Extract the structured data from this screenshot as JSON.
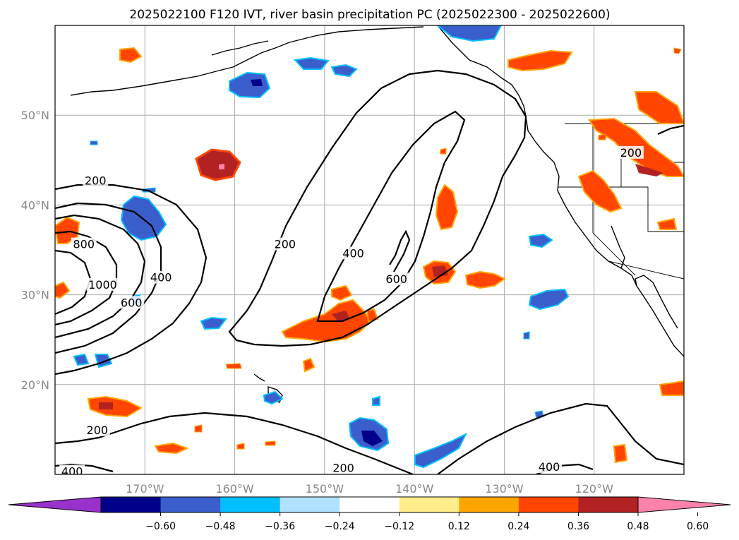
{
  "chart_data": {
    "type": "contour-map",
    "title": "2025022100 F120 IVT, river basin precipitation PC (2025022300 - 2025022600)",
    "map": {
      "lon_range": [
        -180,
        -110
      ],
      "lat_range": [
        10,
        60
      ],
      "lat_ticks": [
        {
          "value": 20,
          "label": "20°N"
        },
        {
          "value": 30,
          "label": "30°N"
        },
        {
          "value": 40,
          "label": "40°N"
        },
        {
          "value": 50,
          "label": "50°N"
        }
      ],
      "lon_ticks": [
        {
          "value": -170,
          "label": "170°W"
        },
        {
          "value": -160,
          "label": "160°W"
        },
        {
          "value": -150,
          "label": "150°W"
        },
        {
          "value": -140,
          "label": "140°W"
        },
        {
          "value": -130,
          "label": "130°W"
        },
        {
          "value": -120,
          "label": "120°W"
        }
      ],
      "grid": true
    },
    "ivt_contour_labels": [
      {
        "text": "200",
        "lon": -175.5,
        "lat": 42.6
      },
      {
        "text": "800",
        "lon": -176.8,
        "lat": 35.5
      },
      {
        "text": "1000",
        "lon": -174.7,
        "lat": 31.0
      },
      {
        "text": "600",
        "lon": -171.5,
        "lat": 29.0
      },
      {
        "text": "400",
        "lon": -168.2,
        "lat": 31.8
      },
      {
        "text": "200",
        "lon": -154.4,
        "lat": 35.5
      },
      {
        "text": "400",
        "lon": -146.8,
        "lat": 34.5
      },
      {
        "text": "600",
        "lon": -142.0,
        "lat": 31.6
      },
      {
        "text": "200",
        "lon": -115.9,
        "lat": 45.7
      },
      {
        "text": "200",
        "lon": -175.3,
        "lat": 14.8
      },
      {
        "text": "400",
        "lon": -178.1,
        "lat": 10.2
      },
      {
        "text": "200",
        "lon": -147.9,
        "lat": 10.6
      },
      {
        "text": "400",
        "lon": -125.0,
        "lat": 10.7
      }
    ],
    "colorbar": {
      "extend": "both",
      "levels": [
        -0.72,
        -0.6,
        -0.48,
        -0.36,
        -0.24,
        -0.12,
        0.12,
        0.24,
        0.36,
        0.48,
        0.6,
        0.72
      ],
      "tick_labels": [
        "−0.60",
        "−0.48",
        "−0.36",
        "−0.24",
        "−0.12",
        "0.12",
        "0.24",
        "0.36",
        "0.48",
        "0.60"
      ],
      "colors": [
        "#9932cc",
        "#00008b",
        "#3a5fcd",
        "#00bfff",
        "#b0e2ff",
        "#ffffff",
        "#ffec8b",
        "#ffa500",
        "#ff4500",
        "#b22222",
        "#ff82ab"
      ]
    }
  }
}
